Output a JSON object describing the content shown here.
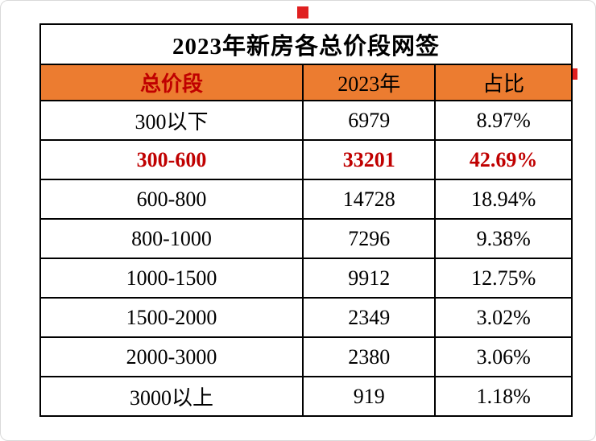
{
  "title": "2023年新房各总价段网签",
  "colors": {
    "header_bg": "#ec7c30",
    "header_first_col_text": "#c00000",
    "highlight_text": "#c00000",
    "border": "#000000",
    "red_mark": "#e02020"
  },
  "table": {
    "columns": [
      "总价段",
      "2023年",
      "占比"
    ],
    "rows": [
      {
        "range": "300以下",
        "count": "6979",
        "share": "8.97%",
        "highlight": false
      },
      {
        "range": "300-600",
        "count": "33201",
        "share": "42.69%",
        "highlight": true
      },
      {
        "range": "600-800",
        "count": "14728",
        "share": "18.94%",
        "highlight": false
      },
      {
        "range": "800-1000",
        "count": "7296",
        "share": "9.38%",
        "highlight": false
      },
      {
        "range": "1000-1500",
        "count": "9912",
        "share": "12.75%",
        "highlight": false
      },
      {
        "range": "1500-2000",
        "count": "2349",
        "share": "3.02%",
        "highlight": false
      },
      {
        "range": "2000-3000",
        "count": "2380",
        "share": "3.06%",
        "highlight": false
      },
      {
        "range": "3000以上",
        "count": "919",
        "share": "1.18%",
        "highlight": false
      }
    ]
  },
  "chart_data": {
    "type": "table",
    "title": "2023年新房各总价段网签",
    "columns": [
      "总价段",
      "2023年",
      "占比"
    ],
    "rows": [
      [
        "300以下",
        6979,
        "8.97%"
      ],
      [
        "300-600",
        33201,
        "42.69%"
      ],
      [
        "600-800",
        14728,
        "18.94%"
      ],
      [
        "800-1000",
        7296,
        "9.38%"
      ],
      [
        "1000-1500",
        9912,
        "12.75%"
      ],
      [
        "1500-2000",
        2349,
        "3.02%"
      ],
      [
        "2000-3000",
        2380,
        "3.06%"
      ],
      [
        "3000以上",
        919,
        "1.18%"
      ]
    ],
    "notes": "Row 300-600 is emphasized in red bold; header row has orange background."
  }
}
